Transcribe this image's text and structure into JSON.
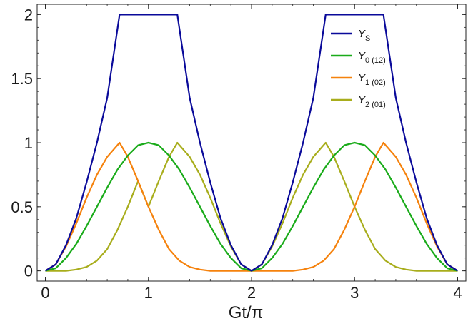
{
  "chart_data": {
    "type": "line",
    "title": "",
    "xlabel": "Gt/π",
    "ylabel": "",
    "xlim": [
      -0.08,
      4.08
    ],
    "ylim": [
      -0.08,
      2.08
    ],
    "xticks": [
      0,
      1,
      2,
      3,
      4
    ],
    "xtick_labels": [
      "0",
      "1",
      "2",
      "3",
      "4"
    ],
    "yticks": [
      0,
      0.5,
      1,
      1.5,
      2
    ],
    "ytick_labels": [
      "0",
      "0.5",
      "1",
      "1.5",
      "2"
    ],
    "grid": false,
    "legend_position": "top-right",
    "series": [
      {
        "name": "Y_S",
        "legend_main": "Y",
        "legend_sub": "S",
        "color": "#0a0a9a",
        "x": [
          0,
          0.1,
          0.2,
          0.3,
          0.4,
          0.5,
          0.6,
          0.72,
          1.28,
          1.4,
          1.5,
          1.6,
          1.7,
          1.8,
          1.9,
          2.0,
          2.1,
          2.2,
          2.3,
          2.4,
          2.5,
          2.6,
          2.72,
          3.28,
          3.4,
          3.5,
          3.6,
          3.7,
          3.8,
          3.9,
          4.0
        ],
        "y": [
          0,
          0.05,
          0.2,
          0.41,
          0.69,
          1.0,
          1.35,
          2.0,
          2.0,
          1.35,
          1.0,
          0.69,
          0.41,
          0.2,
          0.05,
          0,
          0.05,
          0.2,
          0.41,
          0.69,
          1.0,
          1.35,
          2.0,
          2.0,
          1.35,
          1.0,
          0.69,
          0.41,
          0.2,
          0.05,
          0
        ]
      },
      {
        "name": "Y_0(12)",
        "legend_main": "Y",
        "legend_sub": "0 (12)",
        "color": "#1aab1a",
        "x": [
          0,
          0.1,
          0.2,
          0.3,
          0.4,
          0.5,
          0.6,
          0.7,
          0.8,
          0.9,
          1.0,
          1.1,
          1.2,
          1.3,
          1.4,
          1.5,
          1.6,
          1.7,
          1.8,
          1.9,
          2.0,
          2.1,
          2.2,
          2.3,
          2.4,
          2.5,
          2.6,
          2.7,
          2.8,
          2.9,
          3.0,
          3.1,
          3.2,
          3.3,
          3.4,
          3.5,
          3.6,
          3.7,
          3.8,
          3.9,
          4.0
        ],
        "y": [
          0,
          0.02,
          0.1,
          0.21,
          0.35,
          0.5,
          0.65,
          0.79,
          0.9,
          0.98,
          1.0,
          0.98,
          0.9,
          0.79,
          0.65,
          0.5,
          0.35,
          0.21,
          0.1,
          0.02,
          0,
          0.02,
          0.1,
          0.21,
          0.35,
          0.5,
          0.65,
          0.79,
          0.9,
          0.98,
          1.0,
          0.98,
          0.9,
          0.79,
          0.65,
          0.5,
          0.35,
          0.21,
          0.1,
          0.02,
          0
        ]
      },
      {
        "name": "Y_1(02)",
        "legend_main": "Y",
        "legend_sub": "1 (02)",
        "color": "#f5820d",
        "x": [
          0,
          0.1,
          0.2,
          0.3,
          0.4,
          0.5,
          0.6,
          0.72,
          0.8,
          0.9,
          1.0,
          1.1,
          1.2,
          1.3,
          1.4,
          1.5,
          1.6,
          1.7,
          1.8,
          1.9,
          2.0,
          2.1,
          2.2,
          2.3,
          2.4,
          2.5,
          2.6,
          2.7,
          2.8,
          2.9,
          3.0,
          3.1,
          3.2,
          3.28,
          3.4,
          3.5,
          3.6,
          3.7,
          3.8,
          3.9,
          4.0
        ],
        "y": [
          0,
          0.05,
          0.19,
          0.37,
          0.57,
          0.75,
          0.89,
          1.0,
          0.89,
          0.7,
          0.5,
          0.32,
          0.17,
          0.08,
          0.03,
          0.01,
          0.0,
          0.0,
          0.0,
          0.0,
          0,
          0.0,
          0.0,
          0.0,
          0.0,
          0.01,
          0.03,
          0.08,
          0.17,
          0.32,
          0.5,
          0.7,
          0.89,
          1.0,
          0.89,
          0.75,
          0.57,
          0.37,
          0.19,
          0.05,
          0
        ]
      },
      {
        "name": "Y_2(01)",
        "legend_main": "Y",
        "legend_sub": "2 (01)",
        "color": "#a8ad1c",
        "x": [
          0,
          0.1,
          0.2,
          0.3,
          0.4,
          0.5,
          0.6,
          0.7,
          0.8,
          0.9,
          1.0,
          1.1,
          1.2,
          1.28,
          1.4,
          1.5,
          1.6,
          1.7,
          1.8,
          1.9,
          2.0,
          2.1,
          2.2,
          2.3,
          2.4,
          2.5,
          2.6,
          2.72,
          2.8,
          2.9,
          3.0,
          3.1,
          3.2,
          3.3,
          3.4,
          3.5,
          3.6,
          3.7,
          3.8,
          3.9,
          4.0
        ],
        "y": [
          0,
          0.0,
          0.0,
          0.01,
          0.03,
          0.08,
          0.17,
          0.32,
          0.5,
          0.7,
          0.5,
          0.7,
          0.89,
          1.0,
          0.89,
          0.75,
          0.57,
          0.37,
          0.19,
          0.05,
          0,
          0.05,
          0.19,
          0.37,
          0.57,
          0.75,
          0.89,
          1.0,
          0.89,
          0.7,
          0.5,
          0.32,
          0.17,
          0.08,
          0.03,
          0.01,
          0.0,
          0.0,
          0.0,
          0.0,
          0
        ]
      }
    ]
  }
}
